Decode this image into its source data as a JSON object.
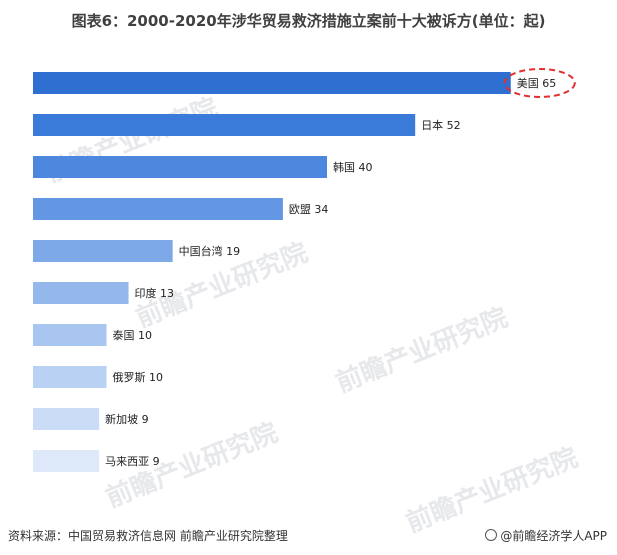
{
  "title": "图表6：2000-2020年涉华贸易救济措施立案前十大被诉方(单位：起)",
  "watermark_text": "前瞻产业研究院",
  "footer": {
    "source": "资料来源：中国贸易救济信息网 前瞻产业研究院整理",
    "brand": "@前瞻经济学人APP"
  },
  "chart_data": {
    "type": "bar",
    "orientation": "horizontal",
    "categories": [
      "美国",
      "日本",
      "韩国",
      "欧盟",
      "中国台湾",
      "印度",
      "泰国",
      "俄罗斯",
      "新加坡",
      "马来西亚"
    ],
    "values": [
      65,
      52,
      40,
      34,
      19,
      13,
      10,
      10,
      9,
      9
    ],
    "colors": [
      "#2e6fd1",
      "#3a7ad8",
      "#4d87de",
      "#6497e3",
      "#7ea9e8",
      "#94b8ec",
      "#a8c6f0",
      "#b9d1f3",
      "#cbdcf6",
      "#dde8f9"
    ],
    "highlight": "美国",
    "highlight_color": "#e03030",
    "grid": false,
    "legend": "none"
  }
}
